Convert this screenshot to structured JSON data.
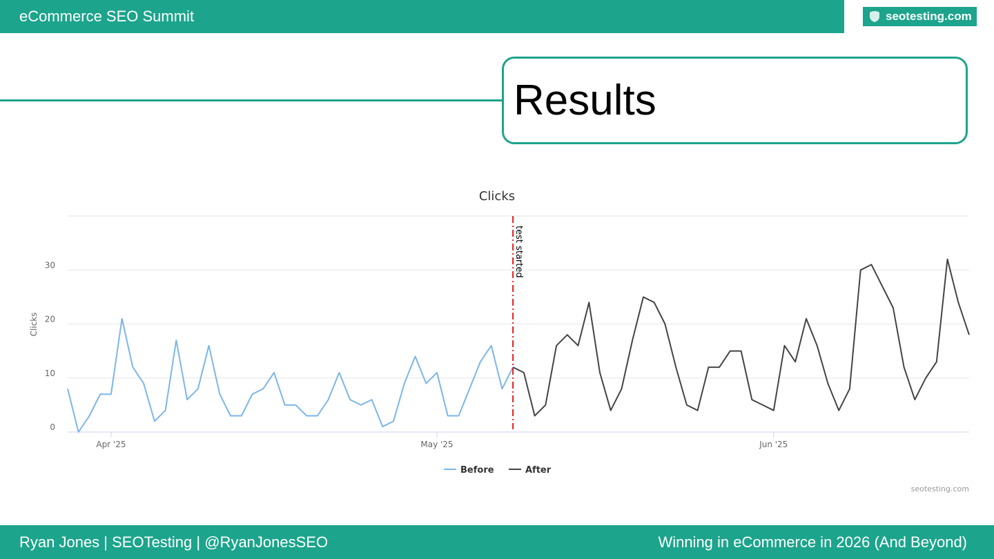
{
  "header": {
    "event_title": "eCommerce SEO Summit",
    "logo_text": "seotesting.com"
  },
  "slide": {
    "title": "Results"
  },
  "chart_data": {
    "type": "line",
    "title": "Clicks",
    "ylabel": "Clicks",
    "xlabel": "",
    "ylim": [
      0,
      40
    ],
    "y_ticks": [
      0,
      10,
      20,
      30
    ],
    "x_tick_labels": [
      "Apr '25",
      "May '25",
      "Jun '25"
    ],
    "x_tick_positions": [
      4,
      34,
      65
    ],
    "annotation": {
      "label": "test started",
      "x": 41,
      "color": "#e31a1c"
    },
    "series": [
      {
        "name": "Before",
        "color": "#7cb5ec",
        "x_start": 0,
        "values": [
          8,
          0,
          3,
          7,
          7,
          21,
          12,
          9,
          2,
          4,
          17,
          6,
          8,
          16,
          7,
          3,
          3,
          7,
          8,
          11,
          5,
          5,
          3,
          3,
          6,
          11,
          6,
          5,
          6,
          1,
          2,
          9,
          14,
          9,
          11,
          3,
          3,
          8,
          13,
          16,
          8,
          12
        ]
      },
      {
        "name": "After",
        "color": "#434348",
        "x_start": 41,
        "values": [
          12,
          11,
          3,
          5,
          16,
          18,
          16,
          24,
          11,
          4,
          8,
          17,
          25,
          24,
          20,
          12,
          5,
          4,
          12,
          12,
          15,
          15,
          6,
          5,
          4,
          16,
          13,
          21,
          16,
          9,
          4,
          8,
          30,
          31,
          27,
          23,
          12,
          6,
          10,
          13,
          32,
          24,
          18
        ]
      }
    ],
    "legend_position": "bottom-center",
    "credit": "seotesting.com",
    "grid": true
  },
  "footer": {
    "left": "Ryan Jones | SEOTesting | @RyanJonesSEO",
    "right": "Winning in eCommerce in 2026 (And Beyond)"
  }
}
